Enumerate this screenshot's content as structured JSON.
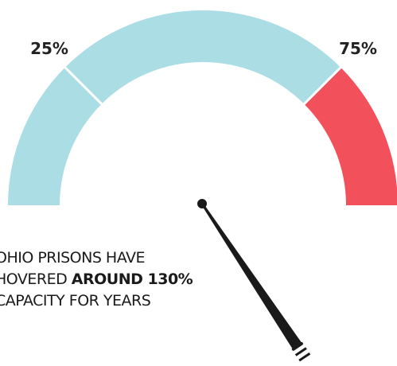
{
  "chart_data": {
    "type": "gauge",
    "range": [
      0,
      100
    ],
    "segments": [
      {
        "from": 0,
        "to": 25,
        "color": "#abdde5"
      },
      {
        "from": 25,
        "to": 75,
        "color": "#abdde5"
      },
      {
        "from": 75,
        "to": 100,
        "color": "#f2505a"
      }
    ],
    "tick_labels": [
      {
        "value": 25,
        "label": "25%"
      },
      {
        "value": 75,
        "label": "75%"
      }
    ],
    "needle_value": 130,
    "needle_color": "#1a1a1a",
    "separator_color": "#ffffff"
  },
  "headline": {
    "line1": "OHIO PRISONS HAVE",
    "line2_prefix": "HOVERED ",
    "line2_bold": "AROUND 130%",
    "line3": "CAPACITY FOR YEARS"
  }
}
